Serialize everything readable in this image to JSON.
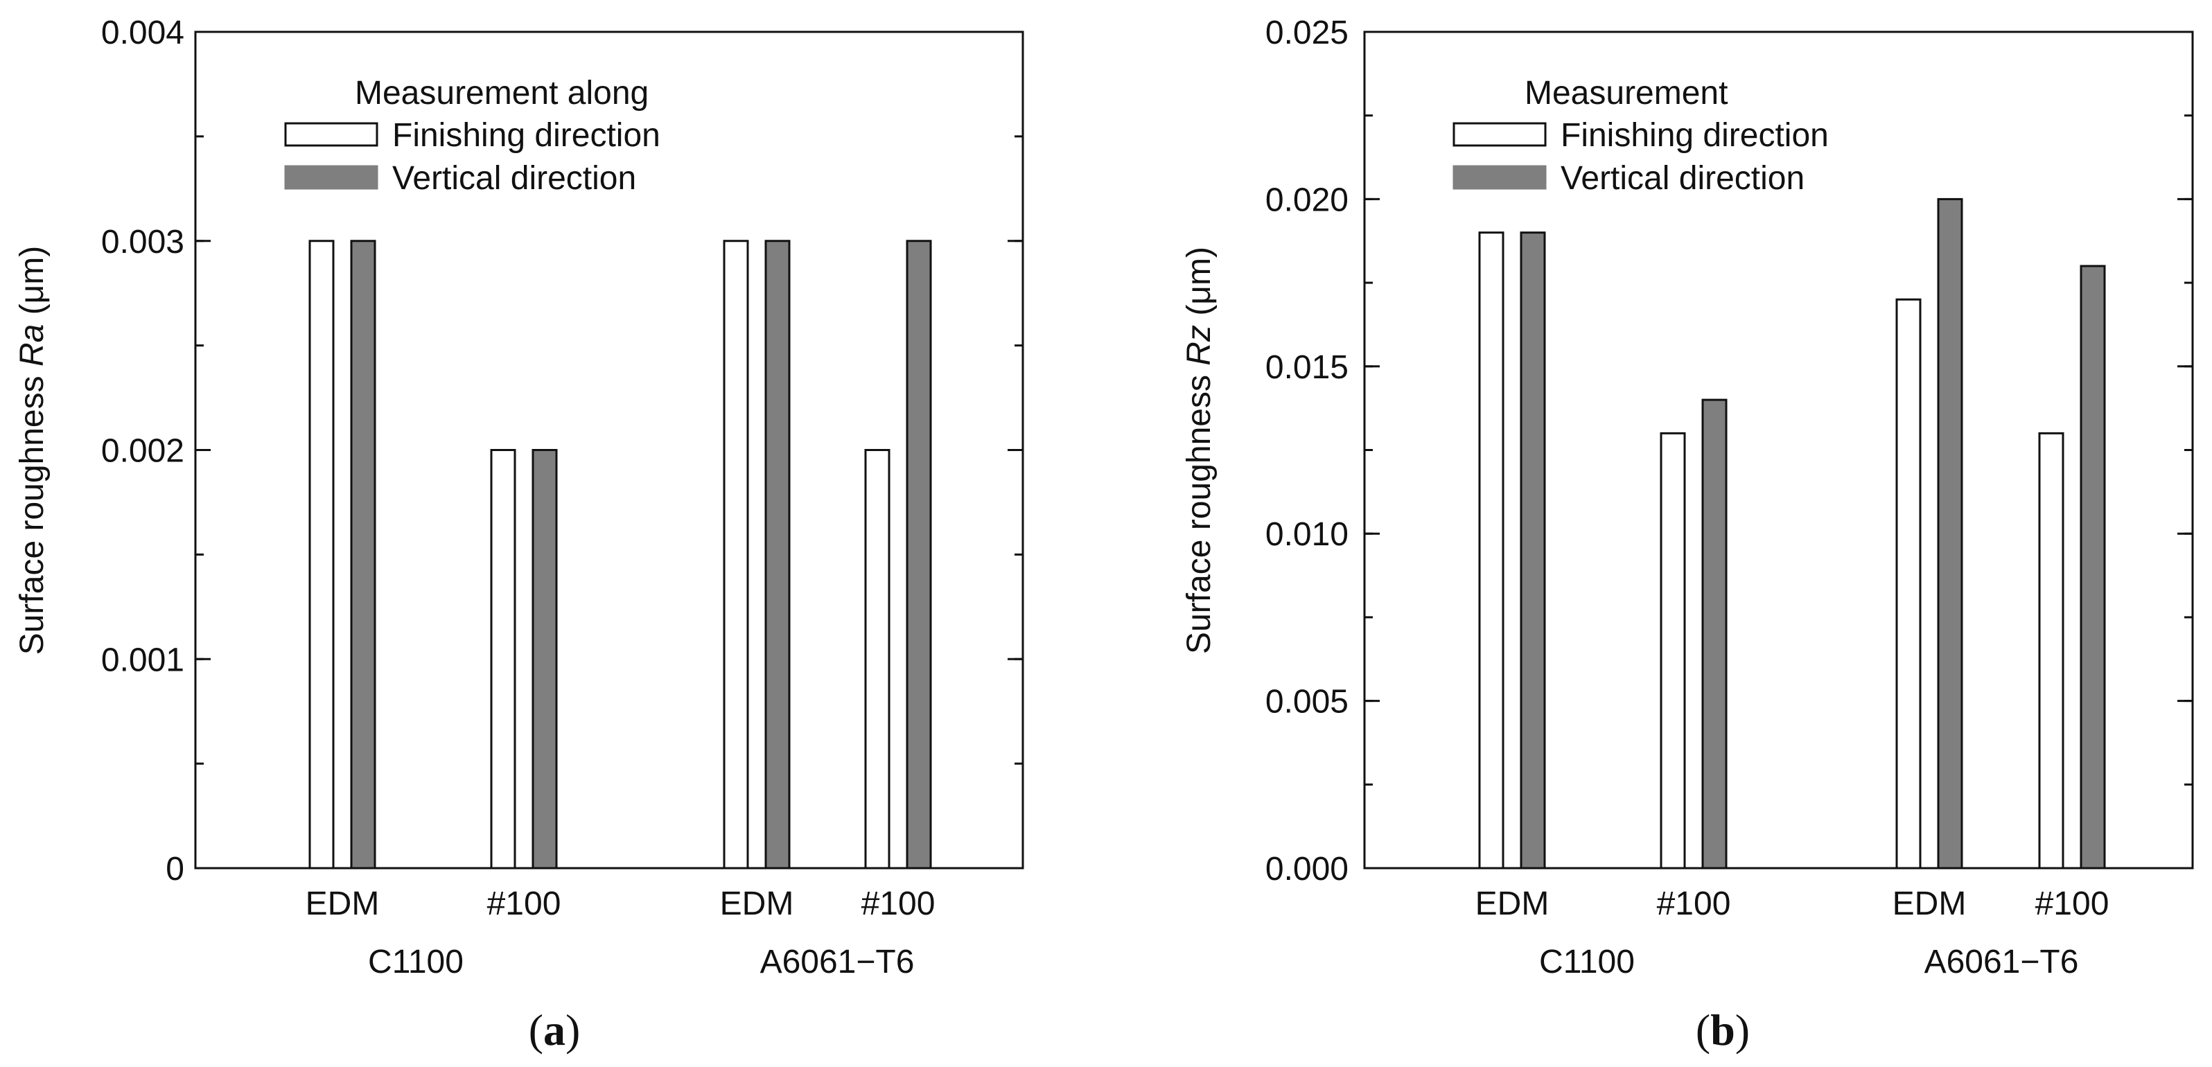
{
  "chart_data": [
    {
      "id": "a",
      "type": "bar",
      "panel_label": "a",
      "ylabel_prefix": "Surface roughness",
      "ylabel_symbol": "Ra",
      "ylabel_unit": "(μm)",
      "ylim": [
        0,
        0.004
      ],
      "yticks": [
        "0",
        "0.001",
        "0.002",
        "0.003",
        "0.004"
      ],
      "ytick_values": [
        0,
        0.001,
        0.002,
        0.003,
        0.004
      ],
      "minor_step": 0.0005,
      "legend": {
        "title": "Measurement along",
        "items": [
          {
            "label": "Finishing direction",
            "style": "open"
          },
          {
            "label": "Vertical direction",
            "style": "filled"
          }
        ]
      },
      "categories": [
        "EDM",
        "#100",
        "EDM",
        "#100"
      ],
      "groups": [
        {
          "label": "C1100"
        },
        {
          "label": "A6061−T6"
        }
      ],
      "series": [
        {
          "name": "Finishing direction",
          "values": [
            0.003,
            0.002,
            0.003,
            0.002
          ]
        },
        {
          "name": "Vertical direction",
          "values": [
            0.003,
            0.002,
            0.003,
            0.003
          ]
        }
      ]
    },
    {
      "id": "b",
      "type": "bar",
      "panel_label": "b",
      "ylabel_prefix": "Surface roughness",
      "ylabel_symbol": "Rz",
      "ylabel_unit": "(μm)",
      "ylim": [
        0,
        0.025
      ],
      "yticks": [
        "0.000",
        "0.005",
        "0.010",
        "0.015",
        "0.020",
        "0.025"
      ],
      "ytick_values": [
        0,
        0.005,
        0.01,
        0.015,
        0.02,
        0.025
      ],
      "minor_step": 0.0025,
      "legend": {
        "title": "Measurement",
        "items": [
          {
            "label": "Finishing direction",
            "style": "open"
          },
          {
            "label": "Vertical direction",
            "style": "filled"
          }
        ]
      },
      "categories": [
        "EDM",
        "#100",
        "EDM",
        "#100"
      ],
      "groups": [
        {
          "label": "C1100"
        },
        {
          "label": "A6061−T6"
        }
      ],
      "series": [
        {
          "name": "Finishing direction",
          "values": [
            0.019,
            0.013,
            0.017,
            0.013
          ]
        },
        {
          "name": "Vertical direction",
          "values": [
            0.019,
            0.014,
            0.02,
            0.018
          ]
        }
      ]
    }
  ],
  "colors": {
    "open_fill": "#ffffff",
    "filled_fill": "#7f7f7f",
    "stroke": "#111111"
  }
}
